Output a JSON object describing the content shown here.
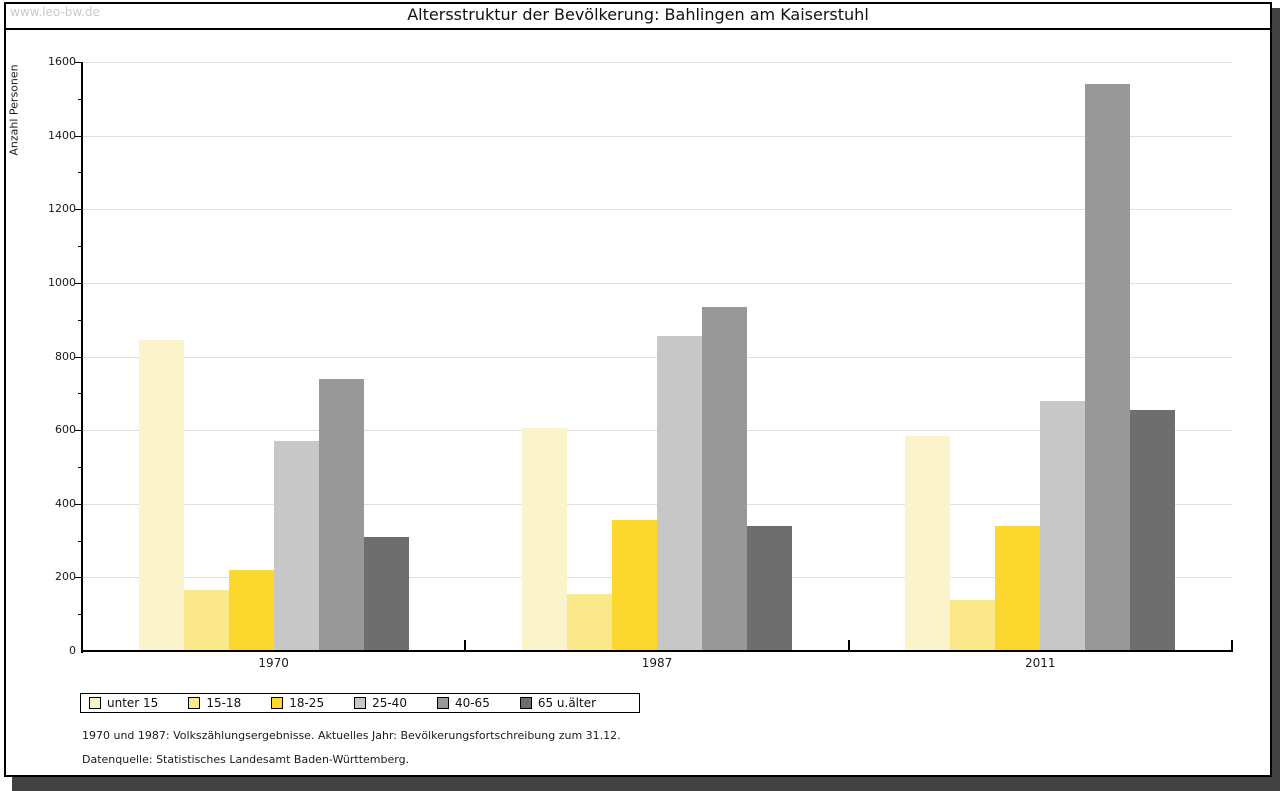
{
  "page": {
    "watermark": "www.leo-bw.de",
    "title": "Altersstruktur der Bevölkerung: Bahlingen am Kaiserstuhl"
  },
  "footer": {
    "line1": "1970 und 1987: Volkszählungsergebnisse. Aktuelles Jahr: Bevölkerungsfortschreibung zum 31.12.",
    "line2": "Datenquelle: Statistisches Landesamt Baden-Württemberg."
  },
  "chart_data": {
    "type": "bar",
    "title": "Altersstruktur der Bevölkerung: Bahlingen am Kaiserstuhl",
    "xlabel": "",
    "ylabel": "Anzahl Personen",
    "categories": [
      "1970",
      "1987",
      "2011"
    ],
    "series": [
      {
        "name": "unter 15",
        "color": "#FBF3C9",
        "values": [
          845,
          605,
          585
        ]
      },
      {
        "name": "15-18",
        "color": "#FBE88A",
        "values": [
          165,
          155,
          140
        ]
      },
      {
        "name": "18-25",
        "color": "#FCD72E",
        "values": [
          220,
          355,
          340
        ]
      },
      {
        "name": "25-40",
        "color": "#C7C7C7",
        "values": [
          570,
          855,
          680
        ]
      },
      {
        "name": "40-65",
        "color": "#989898",
        "values": [
          740,
          935,
          1540
        ]
      },
      {
        "name": "65 u.älter",
        "color": "#6E6E6E",
        "values": [
          310,
          340,
          655
        ]
      }
    ],
    "ylim": [
      0,
      1600
    ],
    "ytick_step": 200,
    "minor_tick_step": 100,
    "grid": true,
    "legend_position": "bottom"
  }
}
